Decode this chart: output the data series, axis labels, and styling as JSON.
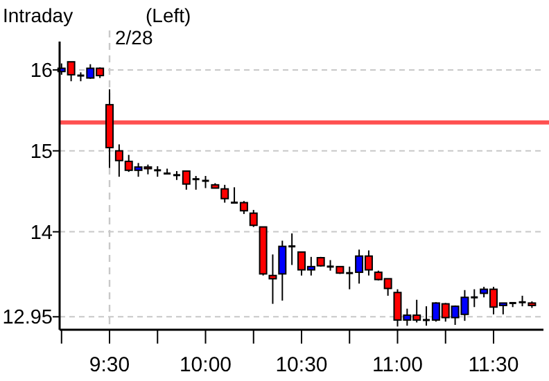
{
  "chart_data": {
    "type": "candlestick",
    "annotations": [
      "Intraday",
      "(Left)",
      "2/28"
    ],
    "x": [
      9.25,
      9.3,
      9.35,
      9.4,
      9.45,
      9.5,
      9.55,
      9.6,
      9.65,
      9.7,
      9.75,
      9.8,
      9.85,
      9.9,
      9.95,
      10.0,
      10.05,
      10.1,
      10.15,
      10.2,
      10.25,
      10.3,
      10.35,
      10.4,
      10.45,
      10.5,
      10.55,
      10.6,
      10.65,
      10.7,
      10.75,
      10.8,
      10.85,
      10.9,
      10.95,
      11.0,
      11.05,
      11.1,
      11.15,
      11.2,
      11.25,
      11.3,
      11.35,
      11.4,
      11.45,
      11.5,
      11.55,
      11.6,
      11.65,
      11.7
    ],
    "ohlc": [
      [
        15.98,
        16.08,
        15.94,
        16.02
      ],
      [
        16.1,
        16.1,
        15.86,
        15.94
      ],
      [
        15.93,
        15.97,
        15.86,
        15.93
      ],
      [
        15.9,
        16.07,
        15.89,
        16.02
      ],
      [
        16.02,
        16.03,
        15.9,
        15.93
      ],
      [
        15.57,
        15.76,
        14.79,
        15.04
      ],
      [
        15.0,
        15.08,
        14.68,
        14.88
      ],
      [
        14.87,
        14.95,
        14.74,
        14.76
      ],
      [
        14.76,
        14.85,
        14.68,
        14.8
      ],
      [
        14.8,
        14.83,
        14.71,
        14.78
      ],
      [
        14.76,
        14.81,
        14.68,
        14.76
      ],
      [
        14.72,
        14.78,
        14.72,
        14.72
      ],
      [
        14.7,
        14.75,
        14.64,
        14.7
      ],
      [
        14.75,
        14.75,
        14.52,
        14.59
      ],
      [
        14.65,
        14.69,
        14.52,
        14.65
      ],
      [
        14.63,
        14.69,
        14.54,
        14.63
      ],
      [
        14.58,
        14.6,
        14.54,
        14.54
      ],
      [
        14.53,
        14.58,
        14.36,
        14.41
      ],
      [
        14.36,
        14.55,
        14.35,
        14.36
      ],
      [
        14.36,
        14.38,
        14.22,
        14.26
      ],
      [
        14.23,
        14.27,
        14.06,
        14.08
      ],
      [
        14.06,
        14.06,
        13.46,
        13.48
      ],
      [
        13.46,
        13.72,
        13.11,
        13.42
      ],
      [
        13.48,
        13.89,
        13.15,
        13.82
      ],
      [
        13.82,
        13.98,
        13.59,
        13.82
      ],
      [
        13.75,
        13.75,
        13.46,
        13.53
      ],
      [
        13.53,
        13.69,
        13.46,
        13.57
      ],
      [
        13.68,
        13.69,
        13.57,
        13.58
      ],
      [
        13.57,
        13.65,
        13.52,
        13.57
      ],
      [
        13.57,
        13.57,
        13.48,
        13.49
      ],
      [
        13.49,
        13.57,
        13.29,
        13.49
      ],
      [
        13.5,
        13.78,
        13.36,
        13.7
      ],
      [
        13.7,
        13.77,
        13.46,
        13.53
      ],
      [
        13.5,
        13.52,
        13.4,
        13.41
      ],
      [
        13.42,
        13.42,
        13.21,
        13.3
      ],
      [
        13.25,
        13.29,
        12.83,
        12.91
      ],
      [
        12.91,
        13.05,
        12.84,
        12.97
      ],
      [
        12.97,
        13.16,
        12.88,
        12.91
      ],
      [
        12.91,
        13.08,
        12.84,
        12.91
      ],
      [
        12.91,
        13.13,
        12.89,
        13.12
      ],
      [
        13.11,
        13.12,
        12.89,
        12.94
      ],
      [
        12.94,
        13.09,
        12.85,
        13.08
      ],
      [
        12.98,
        13.28,
        12.9,
        13.19
      ],
      [
        13.19,
        13.29,
        13.07,
        13.19
      ],
      [
        13.24,
        13.32,
        13.19,
        13.29
      ],
      [
        13.29,
        13.32,
        12.98,
        13.07
      ],
      [
        13.09,
        13.12,
        12.98,
        13.12
      ],
      [
        13.12,
        13.12,
        13.07,
        13.12
      ],
      [
        13.13,
        13.21,
        13.08,
        13.13
      ],
      [
        13.12,
        13.14,
        13.06,
        13.09
      ]
    ],
    "colors": [
      "#0000ff",
      "#ff0000",
      "#000000",
      "#0000ff",
      "#ff0000",
      "#ff0000",
      "#ff0000",
      "#ff0000",
      "#0000ff",
      "#ff0000",
      "#000000",
      "#000000",
      "#000000",
      "#ff0000",
      "#000000",
      "#000000",
      "#ff0000",
      "#ff0000",
      "#000000",
      "#ff0000",
      "#ff0000",
      "#ff0000",
      "#ff0000",
      "#0000ff",
      "#000000",
      "#ff0000",
      "#0000ff",
      "#ff0000",
      "#000000",
      "#ff0000",
      "#000000",
      "#0000ff",
      "#ff0000",
      "#ff0000",
      "#ff0000",
      "#ff0000",
      "#0000ff",
      "#ff0000",
      "#000000",
      "#0000ff",
      "#ff0000",
      "#0000ff",
      "#0000ff",
      "#000000",
      "#0000ff",
      "#ff0000",
      "#0000ff",
      "#000000",
      "#000000",
      "#ff0000"
    ],
    "xlim": [
      9.24,
      11.76
    ],
    "xticks": [
      {
        "value": 9.25,
        "label": null
      },
      {
        "value": 9.5,
        "label": "9:30"
      },
      {
        "value": 9.75,
        "label": null
      },
      {
        "value": 10,
        "label": "10:00"
      },
      {
        "value": 10.25,
        "label": null
      },
      {
        "value": 10.5,
        "label": "10:30"
      },
      {
        "value": 10.75,
        "label": null
      },
      {
        "value": 11,
        "label": "11:00"
      },
      {
        "value": 11.25,
        "label": null
      },
      {
        "value": 11.5,
        "label": "11:30"
      }
    ],
    "ylim": [
      12.79,
      16.35
    ],
    "yticks": [
      12.95,
      14,
      15,
      16
    ],
    "grid": "y",
    "ref_lines": [
      {
        "axis": "y",
        "value": 15.35,
        "color": "#ff5050"
      },
      {
        "axis": "x",
        "value": 9.5,
        "line_style": "dashed",
        "color": "#c8c8c8"
      }
    ]
  }
}
